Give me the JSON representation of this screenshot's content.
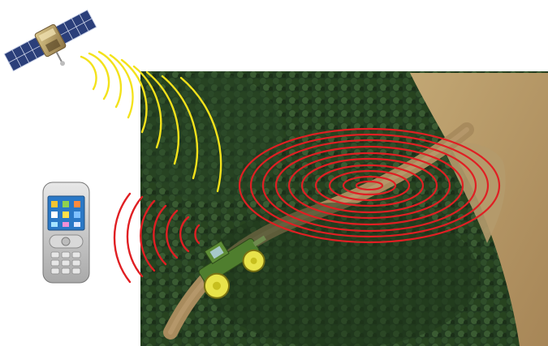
{
  "colors": {
    "background": "#ffffff",
    "forest_dark": "#1f331c",
    "forest_mid": "#2f4a2a",
    "field": "#b79a67",
    "dirt_road": "#a78a5c",
    "gps_signal": "#f3e21b",
    "field_ellipses": "#e01f23",
    "phone_signal": "#e01f23",
    "tractor_body": "#4f7e2e",
    "tractor_wheels": "#e8e34a"
  },
  "icons": {
    "satellite": "satellite-icon",
    "phone": "mobile-phone-icon",
    "tractor": "tractor-icon"
  },
  "signals": {
    "gps_arcs_count": 9,
    "phone_arcs_count": 7,
    "field_ellipses_count": 10
  }
}
